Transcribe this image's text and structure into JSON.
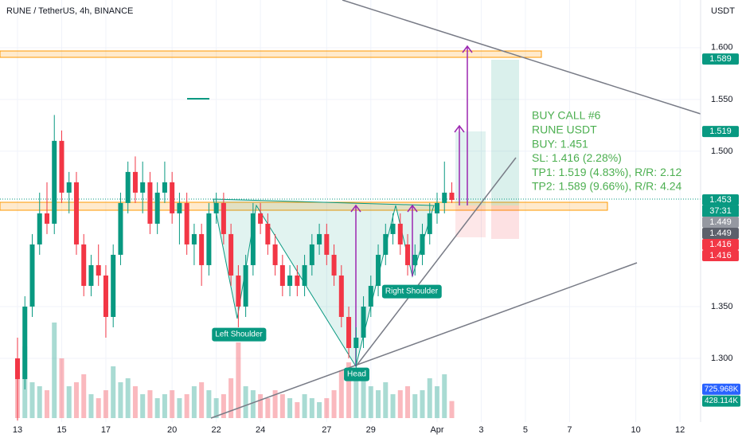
{
  "chart_data": {
    "type": "candlestick",
    "title": "RUNE / TetherUS, 4h, BINANCE",
    "y_axis_label": "USDT",
    "up_color": "#089981",
    "down_color": "#f23645",
    "ylim": [
      1.2385,
      1.646
    ],
    "yticks": [
      {
        "value": 1.3,
        "label": "1.300"
      },
      {
        "value": 1.35,
        "label": "1.350"
      },
      {
        "value": 1.5,
        "label": "1.500"
      },
      {
        "value": 1.55,
        "label": "1.550"
      },
      {
        "value": 1.6,
        "label": "1.600"
      }
    ],
    "xlim": [
      -2.38,
      92.8
    ],
    "xticks": [
      {
        "value": 0,
        "label": "13"
      },
      {
        "value": 6,
        "label": "15"
      },
      {
        "value": 12,
        "label": "17"
      },
      {
        "value": 21,
        "label": "20"
      },
      {
        "value": 27,
        "label": "22"
      },
      {
        "value": 33,
        "label": "24"
      },
      {
        "value": 42,
        "label": "27"
      },
      {
        "value": 48,
        "label": "29"
      },
      {
        "value": 57,
        "label": "Apr"
      },
      {
        "value": 63,
        "label": "3"
      },
      {
        "value": 69,
        "label": "5"
      },
      {
        "value": 75,
        "label": "7"
      },
      {
        "value": 84,
        "label": "10"
      },
      {
        "value": 90,
        "label": "12"
      }
    ],
    "grid": true,
    "candles": [
      [
        1.3,
        1.32,
        1.24,
        1.28
      ],
      [
        1.28,
        1.36,
        1.27,
        1.35
      ],
      [
        1.35,
        1.42,
        1.34,
        1.41
      ],
      [
        1.41,
        1.46,
        1.4,
        1.44
      ],
      [
        1.44,
        1.47,
        1.42,
        1.43
      ],
      [
        1.43,
        1.535,
        1.42,
        1.51
      ],
      [
        1.51,
        1.52,
        1.45,
        1.46
      ],
      [
        1.46,
        1.48,
        1.44,
        1.47
      ],
      [
        1.47,
        1.48,
        1.4,
        1.41
      ],
      [
        1.41,
        1.42,
        1.36,
        1.37
      ],
      [
        1.37,
        1.4,
        1.36,
        1.39
      ],
      [
        1.39,
        1.41,
        1.37,
        1.38
      ],
      [
        1.38,
        1.39,
        1.32,
        1.34
      ],
      [
        1.34,
        1.41,
        1.33,
        1.4
      ],
      [
        1.4,
        1.46,
        1.39,
        1.45
      ],
      [
        1.45,
        1.49,
        1.44,
        1.48
      ],
      [
        1.48,
        1.495,
        1.45,
        1.46
      ],
      [
        1.46,
        1.49,
        1.44,
        1.47
      ],
      [
        1.47,
        1.48,
        1.42,
        1.43
      ],
      [
        1.43,
        1.47,
        1.42,
        1.46
      ],
      [
        1.46,
        1.49,
        1.45,
        1.47
      ],
      [
        1.47,
        1.48,
        1.43,
        1.44
      ],
      [
        1.44,
        1.46,
        1.41,
        1.45
      ],
      [
        1.45,
        1.46,
        1.4,
        1.41
      ],
      [
        1.41,
        1.43,
        1.39,
        1.42
      ],
      [
        1.42,
        1.43,
        1.37,
        1.39
      ],
      [
        1.39,
        1.45,
        1.38,
        1.44
      ],
      [
        1.44,
        1.46,
        1.43,
        1.45
      ],
      [
        1.45,
        1.46,
        1.41,
        1.42
      ],
      [
        1.42,
        1.43,
        1.37,
        1.38
      ],
      [
        1.38,
        1.39,
        1.33,
        1.35
      ],
      [
        1.35,
        1.4,
        1.34,
        1.39
      ],
      [
        1.39,
        1.45,
        1.38,
        1.44
      ],
      [
        1.44,
        1.45,
        1.42,
        1.43
      ],
      [
        1.43,
        1.44,
        1.4,
        1.41
      ],
      [
        1.41,
        1.42,
        1.38,
        1.39
      ],
      [
        1.39,
        1.4,
        1.36,
        1.37
      ],
      [
        1.37,
        1.39,
        1.36,
        1.38
      ],
      [
        1.38,
        1.39,
        1.36,
        1.37
      ],
      [
        1.37,
        1.4,
        1.36,
        1.39
      ],
      [
        1.39,
        1.42,
        1.38,
        1.41
      ],
      [
        1.41,
        1.43,
        1.4,
        1.42
      ],
      [
        1.42,
        1.43,
        1.39,
        1.4
      ],
      [
        1.4,
        1.41,
        1.37,
        1.38
      ],
      [
        1.38,
        1.39,
        1.33,
        1.34
      ],
      [
        1.34,
        1.35,
        1.3,
        1.31
      ],
      [
        1.31,
        1.33,
        1.29,
        1.32
      ],
      [
        1.32,
        1.36,
        1.31,
        1.35
      ],
      [
        1.35,
        1.38,
        1.34,
        1.37
      ],
      [
        1.37,
        1.41,
        1.36,
        1.4
      ],
      [
        1.4,
        1.43,
        1.39,
        1.42
      ],
      [
        1.42,
        1.44,
        1.41,
        1.43
      ],
      [
        1.43,
        1.44,
        1.4,
        1.41
      ],
      [
        1.41,
        1.42,
        1.38,
        1.39
      ],
      [
        1.39,
        1.41,
        1.38,
        1.4
      ],
      [
        1.4,
        1.43,
        1.39,
        1.42
      ],
      [
        1.42,
        1.45,
        1.41,
        1.44
      ],
      [
        1.44,
        1.46,
        1.43,
        1.45
      ],
      [
        1.45,
        1.49,
        1.44,
        1.46
      ],
      [
        1.46,
        1.47,
        1.45,
        1.453
      ]
    ],
    "volume": [
      1200000,
      1800000,
      900000,
      800000,
      700000,
      2400000,
      1500000,
      800000,
      900000,
      1100000,
      600000,
      500000,
      700000,
      1300000,
      900000,
      1000000,
      800000,
      600000,
      700000,
      500000,
      600000,
      700000,
      500000,
      600000,
      800000,
      900000,
      700000,
      500000,
      600000,
      1000000,
      1900000,
      800000,
      700000,
      600000,
      500000,
      700000,
      600000,
      500000,
      400000,
      600000,
      500000,
      400000,
      500000,
      700000,
      1200000,
      1400000,
      1100000,
      1000000,
      800000,
      700000,
      900000,
      600000,
      700000,
      800000,
      600000,
      700000,
      1000000,
      800000,
      1100000,
      428114
    ],
    "volume_ylim": [
      0,
      3000000
    ],
    "volume_labels": [
      {
        "value": 725968,
        "label": "725.968K",
        "color": "#2962ff"
      },
      {
        "value": 428114,
        "label": "428.114K",
        "color": "#089981"
      }
    ],
    "price_labels": [
      {
        "value": 1.589,
        "label": "1.589",
        "color": "#089981"
      },
      {
        "value": 1.519,
        "label": "1.519",
        "color": "#089981"
      },
      {
        "value": 1.453,
        "label": "1.453",
        "color": "#089981"
      },
      {
        "value": 1.449,
        "label": "1.449",
        "color": "#9598a1"
      },
      {
        "value": 1.449,
        "label": "1.449",
        "color": "#5d606b"
      },
      {
        "value": 1.416,
        "label": "1.416",
        "color": "#f23645"
      },
      {
        "value": 1.416,
        "label": "1.416",
        "color": "#f23645"
      }
    ],
    "countdown": "37:31",
    "annotations": [
      "Left Shoulder",
      "Head",
      "Right Shoulder"
    ],
    "note_lines": [
      "BUY CALL #6",
      "RUNE USDT",
      "BUY: 1.451",
      "SL: 1.416 (2.28%)",
      "TP1: 1.519 (4.83%), R/R: 2.12",
      "TP2: 1.589 (9.66%), R/R: 4.24"
    ]
  }
}
